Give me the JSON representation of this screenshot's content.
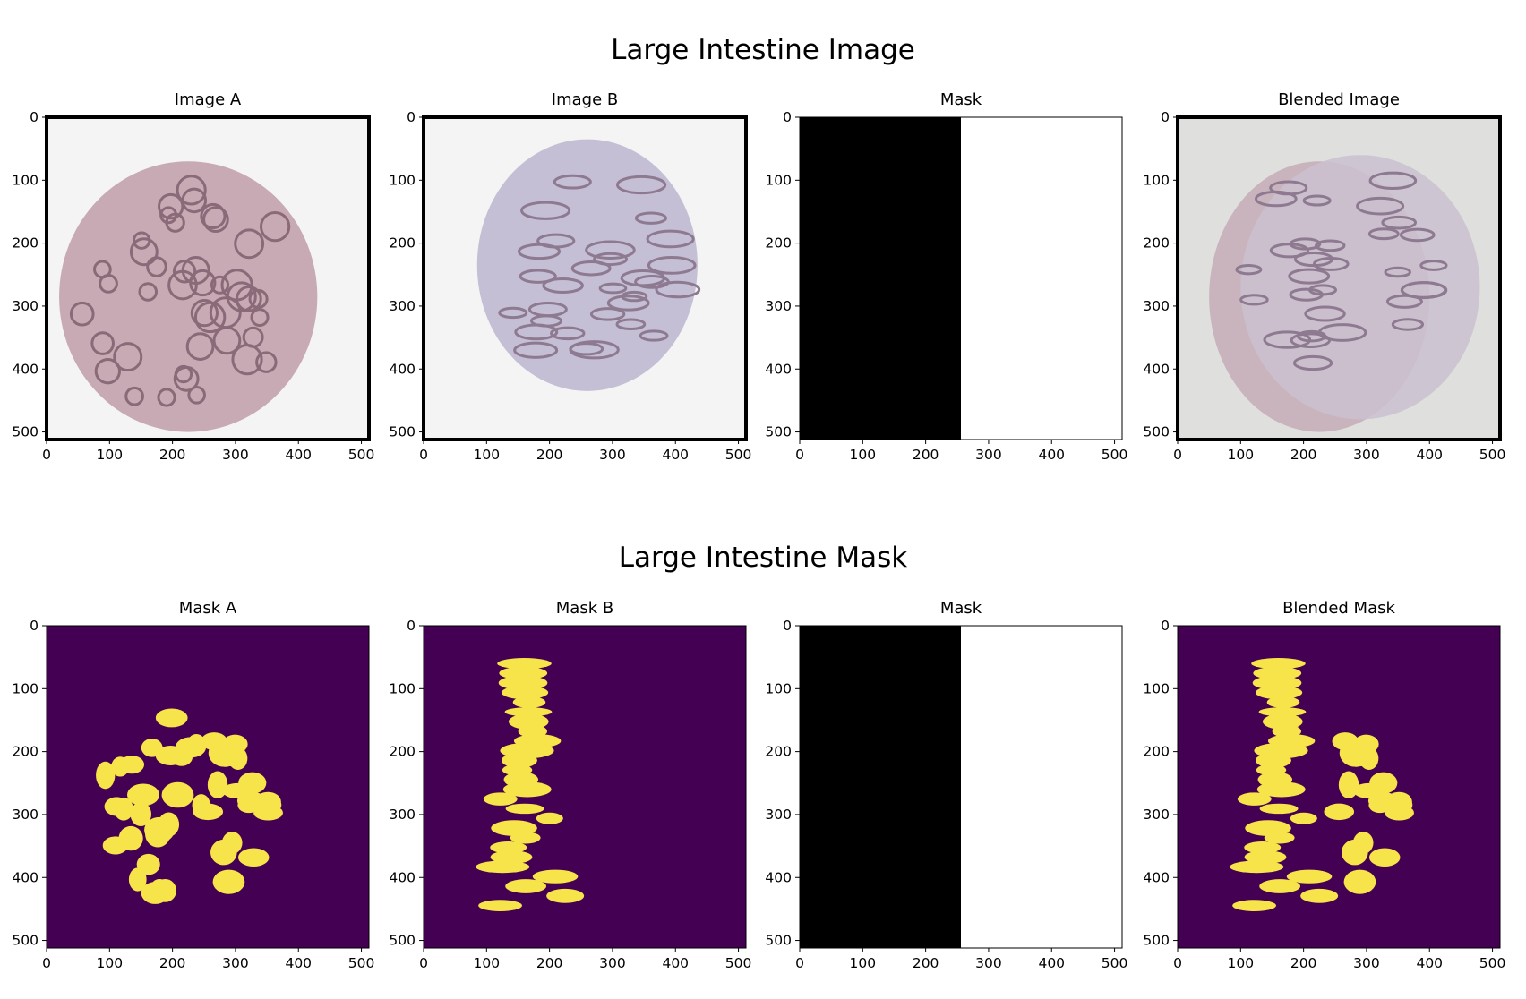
{
  "figure": {
    "row_titles": [
      "Large Intestine Image",
      "Large Intestine Mask"
    ],
    "panels": [
      {
        "title": "Image A",
        "kind": "tissue",
        "variant": "A"
      },
      {
        "title": "Image B",
        "kind": "tissue",
        "variant": "B"
      },
      {
        "title": "Mask",
        "kind": "split"
      },
      {
        "title": "Blended Image",
        "kind": "tissue",
        "variant": "blend"
      },
      {
        "title": "Mask A",
        "kind": "seg",
        "variant": "A"
      },
      {
        "title": "Mask B",
        "kind": "seg",
        "variant": "B"
      },
      {
        "title": "Mask",
        "kind": "split"
      },
      {
        "title": "Blended Mask",
        "kind": "seg",
        "variant": "blend"
      }
    ],
    "axis_ticks": [
      "0",
      "100",
      "200",
      "300",
      "400",
      "500"
    ],
    "split_fraction": 0.5,
    "colors": {
      "seg_background": "#440154",
      "seg_foreground": "#f6e44a",
      "tissue_stain": "#8a6a78",
      "tissue_pale": "#c4bfd4",
      "blend_background": "#dfe0de"
    }
  }
}
